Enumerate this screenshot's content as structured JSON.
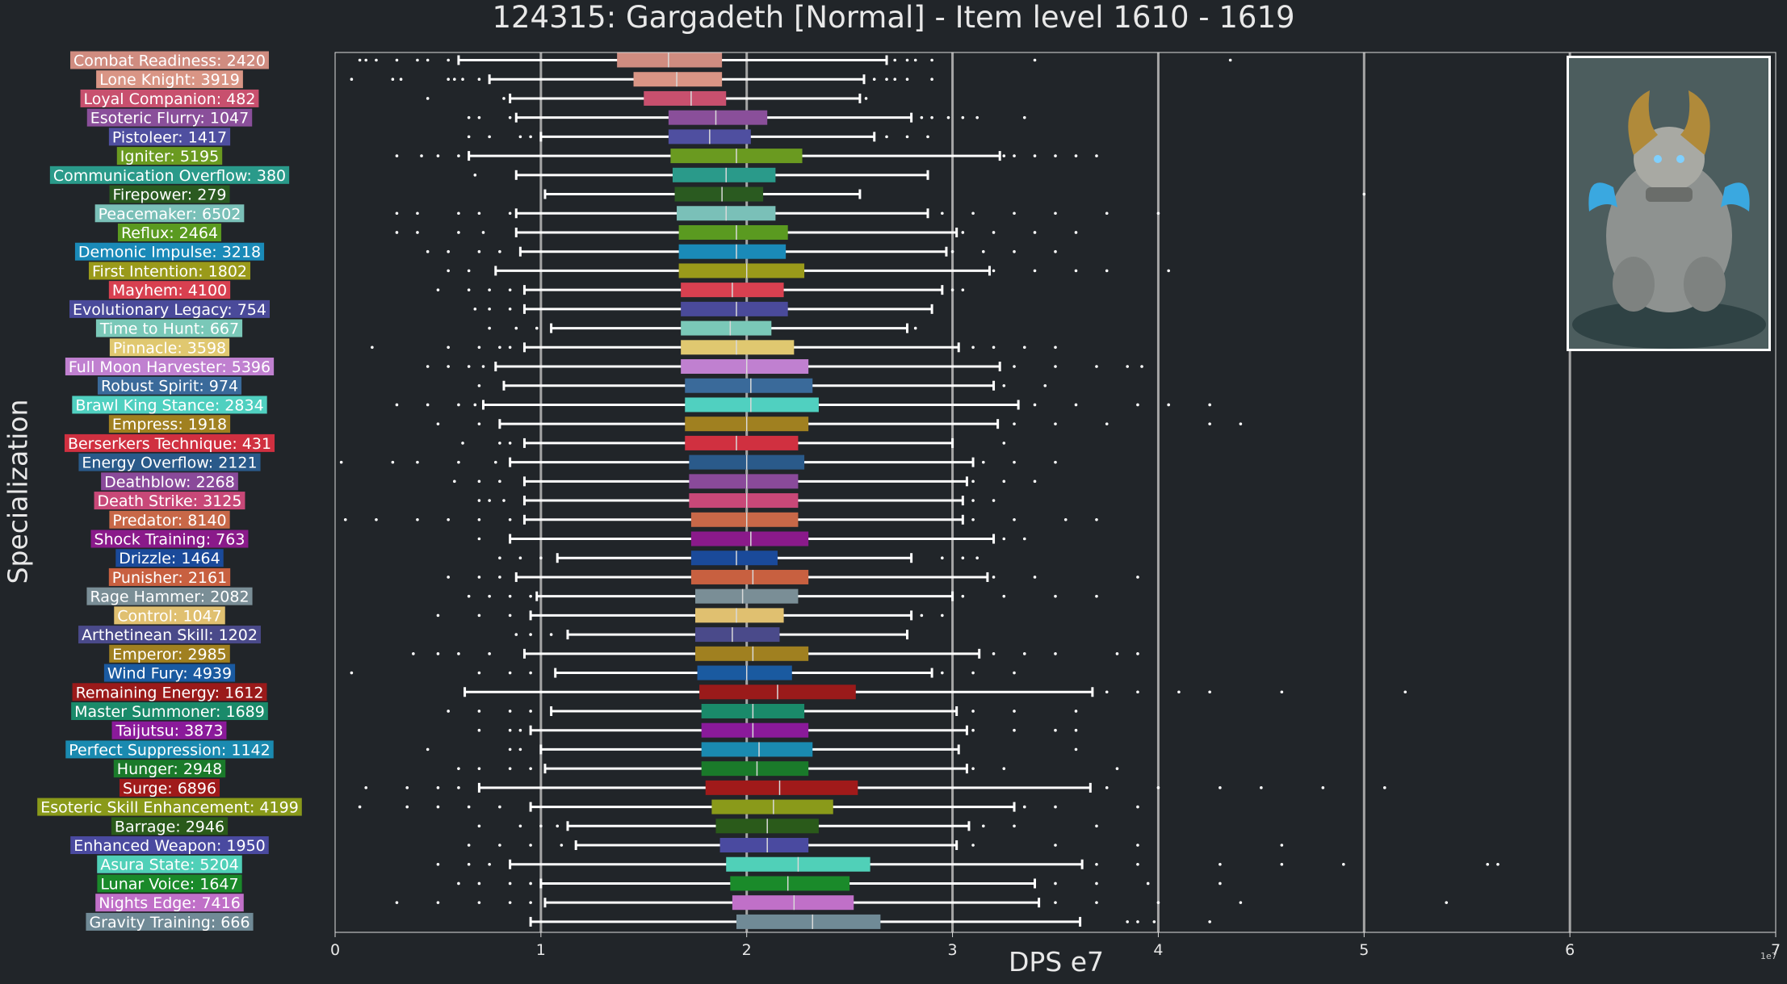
{
  "title": "124315: Gargadeth [Normal] - Item level 1610 - 1619",
  "xlabel": "DPS e7",
  "ylabel": "Specialization",
  "scale_note": "1e7",
  "portrait": {
    "icon": "boss-portrait-icon"
  },
  "chart_data": {
    "type": "box",
    "orientation": "horizontal",
    "value_unit": "DPS (x1e7)",
    "xlim": [
      0,
      7
    ],
    "xticks": [
      "0",
      "1",
      "2",
      "3",
      "4",
      "5",
      "6",
      "7"
    ],
    "grid": "vertical lines at integer ticks",
    "categories": [
      {
        "label": "Combat Readiness: 2420",
        "color": "#d08c80",
        "whisker_low": 0.6,
        "q1": 1.37,
        "median": 1.62,
        "q3": 1.88,
        "whisker_high": 2.68,
        "outliers": [
          0.12,
          0.15,
          0.2,
          0.3,
          0.4,
          0.45,
          0.55,
          2.72,
          2.78,
          2.82,
          2.9,
          3.4,
          4.35
        ]
      },
      {
        "label": "Lone Knight: 3919",
        "color": "#d99585",
        "whisker_low": 0.75,
        "q1": 1.45,
        "median": 1.66,
        "q3": 1.88,
        "whisker_high": 2.57,
        "outliers": [
          0.08,
          0.28,
          0.32,
          0.55,
          0.58,
          0.62,
          0.7,
          2.62,
          2.68,
          2.72,
          2.78,
          2.9
        ]
      },
      {
        "label": "Loyal Companion: 482",
        "color": "#c8506e",
        "whisker_low": 0.85,
        "q1": 1.5,
        "median": 1.73,
        "q3": 1.9,
        "whisker_high": 2.55,
        "outliers": [
          0.82,
          0.45,
          2.58
        ]
      },
      {
        "label": "Esoteric Flurry: 1047",
        "color": "#8a4f9a",
        "whisker_low": 0.88,
        "q1": 1.62,
        "median": 1.85,
        "q3": 2.1,
        "whisker_high": 2.8,
        "outliers": [
          0.65,
          0.7,
          0.85,
          2.85,
          2.9,
          2.98,
          3.05,
          3.12,
          3.35
        ]
      },
      {
        "label": "Pistoleer: 1417",
        "color": "#4f4fa0",
        "whisker_low": 1.0,
        "q1": 1.62,
        "median": 1.82,
        "q3": 2.02,
        "whisker_high": 2.62,
        "outliers": [
          0.65,
          0.75,
          0.9,
          0.95,
          2.68,
          2.78,
          2.88
        ]
      },
      {
        "label": "Igniter: 5195",
        "color": "#6a9a20",
        "whisker_low": 0.65,
        "q1": 1.63,
        "median": 1.95,
        "q3": 2.27,
        "whisker_high": 3.23,
        "outliers": [
          0.3,
          0.42,
          0.5,
          0.6,
          3.25,
          3.3,
          3.4,
          3.5,
          3.6,
          3.7
        ]
      },
      {
        "label": "Communication Overflow: 380",
        "color": "#2a9a8a",
        "whisker_low": 0.88,
        "q1": 1.64,
        "median": 1.9,
        "q3": 2.14,
        "whisker_high": 2.88,
        "outliers": [
          0.68
        ]
      },
      {
        "label": "Firepower: 279",
        "color": "#2a5a20",
        "whisker_low": 1.02,
        "q1": 1.65,
        "median": 1.88,
        "q3": 2.08,
        "whisker_high": 2.55,
        "outliers": [
          5.0
        ]
      },
      {
        "label": "Peacemaker: 6502",
        "color": "#7ac0b8",
        "whisker_low": 0.88,
        "q1": 1.66,
        "median": 1.9,
        "q3": 2.14,
        "whisker_high": 2.88,
        "outliers": [
          0.3,
          0.4,
          0.6,
          0.7,
          0.85,
          2.95,
          3.1,
          3.3,
          3.5,
          3.75,
          4.0
        ]
      },
      {
        "label": "Reflux: 2464",
        "color": "#5a9a20",
        "whisker_low": 0.88,
        "q1": 1.67,
        "median": 1.95,
        "q3": 2.2,
        "whisker_high": 3.02,
        "outliers": [
          0.3,
          0.4,
          0.6,
          0.72,
          3.05,
          3.2,
          3.4,
          3.6
        ]
      },
      {
        "label": "Demonic Impulse: 3218",
        "color": "#1a8ab8",
        "whisker_low": 0.9,
        "q1": 1.67,
        "median": 1.95,
        "q3": 2.19,
        "whisker_high": 2.97,
        "outliers": [
          0.45,
          0.55,
          0.7,
          0.8,
          3.0,
          3.15,
          3.3,
          3.5
        ]
      },
      {
        "label": "First Intention: 1802",
        "color": "#9a9a1a",
        "whisker_low": 0.78,
        "q1": 1.67,
        "median": 2.0,
        "q3": 2.28,
        "whisker_high": 3.18,
        "outliers": [
          0.55,
          0.65,
          3.2,
          3.4,
          3.6,
          3.75,
          4.05
        ]
      },
      {
        "label": "Mayhem: 4100",
        "color": "#d84050",
        "whisker_low": 0.92,
        "q1": 1.68,
        "median": 1.93,
        "q3": 2.18,
        "whisker_high": 2.95,
        "outliers": [
          0.5,
          0.65,
          0.75,
          0.85,
          3.0,
          3.05
        ]
      },
      {
        "label": "Evolutionary Legacy: 754",
        "color": "#4a4a9a",
        "whisker_low": 0.92,
        "q1": 1.68,
        "median": 1.95,
        "q3": 2.2,
        "whisker_high": 2.9,
        "outliers": [
          0.68,
          0.75,
          0.85
        ]
      },
      {
        "label": "Time to Hunt: 667",
        "color": "#7ac8b8",
        "whisker_low": 1.05,
        "q1": 1.68,
        "median": 1.92,
        "q3": 2.12,
        "whisker_high": 2.78,
        "outliers": [
          0.75,
          0.88,
          0.98,
          2.82
        ]
      },
      {
        "label": "Pinnacle: 3598",
        "color": "#e0c870",
        "whisker_low": 0.92,
        "q1": 1.68,
        "median": 1.95,
        "q3": 2.23,
        "whisker_high": 3.03,
        "outliers": [
          0.18,
          0.55,
          0.7,
          0.8,
          0.85,
          3.1,
          3.2,
          3.35,
          3.5
        ]
      },
      {
        "label": "Full Moon Harvester: 5396",
        "color": "#c080d0",
        "whisker_low": 0.78,
        "q1": 1.68,
        "median": 2.0,
        "q3": 2.3,
        "whisker_high": 3.23,
        "outliers": [
          0.45,
          0.55,
          0.65,
          0.72,
          3.3,
          3.5,
          3.7,
          3.85,
          3.92
        ]
      },
      {
        "label": "Robust Spirit: 974",
        "color": "#3a6a9a",
        "whisker_low": 0.82,
        "q1": 1.7,
        "median": 2.02,
        "q3": 2.32,
        "whisker_high": 3.2,
        "outliers": [
          0.7,
          3.25,
          3.45
        ]
      },
      {
        "label": "Brawl King Stance: 2834",
        "color": "#50d0c0",
        "whisker_low": 0.72,
        "q1": 1.7,
        "median": 2.02,
        "q3": 2.35,
        "whisker_high": 3.32,
        "outliers": [
          0.3,
          0.45,
          0.6,
          0.68,
          3.4,
          3.6,
          3.9,
          4.05,
          4.25
        ]
      },
      {
        "label": "Empress: 1918",
        "color": "#a08020",
        "whisker_low": 0.8,
        "q1": 1.7,
        "median": 2.0,
        "q3": 2.3,
        "whisker_high": 3.22,
        "outliers": [
          0.5,
          0.7,
          3.3,
          3.5,
          3.75,
          4.25,
          4.4
        ]
      },
      {
        "label": "Berserkers Technique: 431",
        "color": "#d03040",
        "whisker_low": 0.92,
        "q1": 1.7,
        "median": 1.95,
        "q3": 2.25,
        "whisker_high": 3.0,
        "outliers": [
          0.62,
          0.8,
          0.85,
          3.25
        ]
      },
      {
        "label": "Energy Overflow: 2121",
        "color": "#2a5a8a",
        "whisker_low": 0.85,
        "q1": 1.72,
        "median": 2.0,
        "q3": 2.28,
        "whisker_high": 3.1,
        "outliers": [
          0.03,
          0.28,
          0.4,
          0.6,
          0.78,
          3.15,
          3.3,
          3.5
        ]
      },
      {
        "label": "Deathblow: 2268",
        "color": "#8a4a9a",
        "whisker_low": 0.92,
        "q1": 1.72,
        "median": 2.0,
        "q3": 2.25,
        "whisker_high": 3.07,
        "outliers": [
          0.58,
          0.7,
          0.8,
          3.1,
          3.25,
          3.4
        ]
      },
      {
        "label": "Death Strike: 3125",
        "color": "#c84878",
        "whisker_low": 0.92,
        "q1": 1.72,
        "median": 2.0,
        "q3": 2.25,
        "whisker_high": 3.05,
        "outliers": [
          0.7,
          0.75,
          0.82,
          3.1,
          3.2
        ]
      },
      {
        "label": "Predator: 8140",
        "color": "#c86848",
        "whisker_low": 0.92,
        "q1": 1.73,
        "median": 2.0,
        "q3": 2.25,
        "whisker_high": 3.05,
        "outliers": [
          0.05,
          0.2,
          0.4,
          0.55,
          0.7,
          0.85,
          3.1,
          3.3,
          3.55,
          3.7
        ]
      },
      {
        "label": "Shock Training: 763",
        "color": "#8a1a8a",
        "whisker_low": 0.85,
        "q1": 1.73,
        "median": 2.02,
        "q3": 2.3,
        "whisker_high": 3.2,
        "outliers": [
          0.7,
          3.25,
          3.35
        ]
      },
      {
        "label": "Drizzle: 1464",
        "color": "#1a4a9a",
        "whisker_low": 1.08,
        "q1": 1.73,
        "median": 1.95,
        "q3": 2.15,
        "whisker_high": 2.8,
        "outliers": [
          0.8,
          0.9,
          1.0,
          2.95,
          3.05,
          3.12
        ]
      },
      {
        "label": "Punisher: 2161",
        "color": "#c86040",
        "whisker_low": 0.88,
        "q1": 1.73,
        "median": 2.03,
        "q3": 2.3,
        "whisker_high": 3.17,
        "outliers": [
          0.55,
          0.7,
          0.8,
          3.2,
          3.4,
          3.9
        ]
      },
      {
        "label": "Rage Hammer: 2082",
        "color": "#7a8e96",
        "whisker_low": 0.98,
        "q1": 1.75,
        "median": 1.98,
        "q3": 2.25,
        "whisker_high": 3.0,
        "outliers": [
          0.65,
          0.75,
          0.85,
          0.95,
          3.05,
          3.25,
          3.5,
          3.7
        ]
      },
      {
        "label": "Control: 1047",
        "color": "#e0c070",
        "whisker_low": 0.95,
        "q1": 1.75,
        "median": 1.95,
        "q3": 2.18,
        "whisker_high": 2.8,
        "outliers": [
          0.5,
          0.7,
          0.85,
          2.85,
          2.95
        ]
      },
      {
        "label": "Arthetinean Skill: 1202",
        "color": "#4a4a8a",
        "whisker_low": 1.13,
        "q1": 1.75,
        "median": 1.93,
        "q3": 2.16,
        "whisker_high": 2.78,
        "outliers": [
          0.88,
          0.95,
          1.05
        ]
      },
      {
        "label": "Emperor: 2985",
        "color": "#a08020",
        "whisker_low": 0.92,
        "q1": 1.75,
        "median": 2.03,
        "q3": 2.3,
        "whisker_high": 3.13,
        "outliers": [
          0.38,
          0.5,
          0.6,
          0.75,
          3.2,
          3.35,
          3.5,
          3.8,
          3.9
        ]
      },
      {
        "label": "Wind Fury: 4939",
        "color": "#1a5aa0",
        "whisker_low": 1.07,
        "q1": 1.76,
        "median": 2.0,
        "q3": 2.22,
        "whisker_high": 2.9,
        "outliers": [
          0.08,
          0.7,
          0.85,
          0.95,
          2.95,
          3.1,
          3.3
        ]
      },
      {
        "label": "Remaining Energy: 1612",
        "color": "#9a1a1a",
        "whisker_low": 0.63,
        "q1": 1.77,
        "median": 2.15,
        "q3": 2.53,
        "whisker_high": 3.68,
        "outliers": [
          3.75,
          3.9,
          4.1,
          4.25,
          4.6,
          5.2
        ]
      },
      {
        "label": "Master Summoner: 1689",
        "color": "#1a8a6a",
        "whisker_low": 1.05,
        "q1": 1.78,
        "median": 2.03,
        "q3": 2.28,
        "whisker_high": 3.02,
        "outliers": [
          0.55,
          0.7,
          0.85,
          0.95,
          3.1,
          3.3,
          3.6
        ]
      },
      {
        "label": "Taijutsu: 3873",
        "color": "#8a1a9a",
        "whisker_low": 0.95,
        "q1": 1.78,
        "median": 2.03,
        "q3": 2.3,
        "whisker_high": 3.07,
        "outliers": [
          0.7,
          0.85,
          0.9,
          3.1,
          3.3,
          3.5,
          3.6
        ]
      },
      {
        "label": "Perfect Suppression: 1142",
        "color": "#1a8ab0",
        "whisker_low": 1.0,
        "q1": 1.78,
        "median": 2.06,
        "q3": 2.32,
        "whisker_high": 3.03,
        "outliers": [
          0.45,
          0.85,
          0.9,
          3.6
        ]
      },
      {
        "label": "Hunger: 2948",
        "color": "#1a7a2a",
        "whisker_low": 1.02,
        "q1": 1.78,
        "median": 2.05,
        "q3": 2.3,
        "whisker_high": 3.07,
        "outliers": [
          0.6,
          0.7,
          0.85,
          0.95,
          3.1,
          3.25,
          3.8
        ]
      },
      {
        "label": "Surge: 6896",
        "color": "#a01a1a",
        "whisker_low": 0.7,
        "q1": 1.8,
        "median": 2.16,
        "q3": 2.54,
        "whisker_high": 3.67,
        "outliers": [
          0.15,
          0.35,
          0.5,
          0.6,
          3.75,
          4.0,
          4.3,
          4.5,
          4.8,
          5.1
        ]
      },
      {
        "label": "Esoteric Skill Enhancement: 4199",
        "color": "#8a9a1a",
        "whisker_low": 0.95,
        "q1": 1.83,
        "median": 2.13,
        "q3": 2.42,
        "whisker_high": 3.3,
        "outliers": [
          0.12,
          0.35,
          0.5,
          0.65,
          0.8,
          3.35,
          3.5,
          3.9
        ]
      },
      {
        "label": "Barrage: 2946",
        "color": "#2a5a1a",
        "whisker_low": 1.13,
        "q1": 1.85,
        "median": 2.1,
        "q3": 2.35,
        "whisker_high": 3.08,
        "outliers": [
          0.7,
          0.9,
          1.0,
          1.08,
          3.15,
          3.3,
          3.7
        ]
      },
      {
        "label": "Enhanced Weapon: 1950",
        "color": "#4a4aa0",
        "whisker_low": 1.17,
        "q1": 1.87,
        "median": 2.1,
        "q3": 2.3,
        "whisker_high": 3.02,
        "outliers": [
          0.65,
          0.8,
          0.95,
          1.1,
          3.1,
          3.5,
          3.9,
          4.6
        ]
      },
      {
        "label": "Asura State: 5204",
        "color": "#50d0b8",
        "whisker_low": 0.85,
        "q1": 1.9,
        "median": 2.25,
        "q3": 2.6,
        "whisker_high": 3.63,
        "outliers": [
          0.5,
          0.65,
          0.75,
          3.7,
          3.9,
          4.3,
          4.6,
          4.9,
          5.6,
          5.65
        ]
      },
      {
        "label": "Lunar Voice: 1647",
        "color": "#1a8a2a",
        "whisker_low": 1.0,
        "q1": 1.92,
        "median": 2.2,
        "q3": 2.5,
        "whisker_high": 3.4,
        "outliers": [
          0.6,
          0.7,
          0.85,
          0.95,
          3.5,
          3.7,
          3.95,
          4.3
        ]
      },
      {
        "label": "Nights Edge: 7416",
        "color": "#c070c8",
        "whisker_low": 1.02,
        "q1": 1.93,
        "median": 2.23,
        "q3": 2.52,
        "whisker_high": 3.42,
        "outliers": [
          0.3,
          0.5,
          0.7,
          0.85,
          0.95,
          3.5,
          3.7,
          4.0,
          4.4,
          5.4
        ]
      },
      {
        "label": "Gravity Training: 666",
        "color": "#708a96",
        "whisker_low": 0.95,
        "q1": 1.95,
        "median": 2.32,
        "q3": 2.65,
        "whisker_high": 3.62,
        "outliers": [
          3.85,
          3.9,
          3.98,
          4.25
        ]
      }
    ]
  }
}
